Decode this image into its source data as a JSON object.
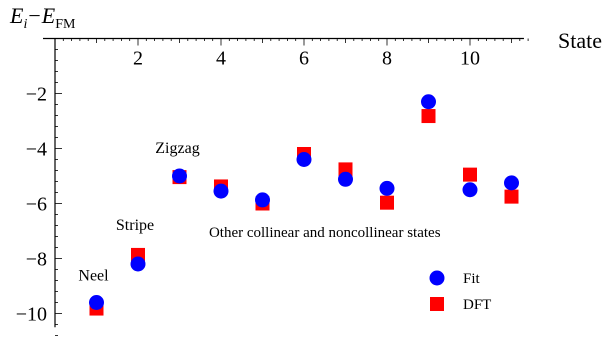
{
  "chart_data": {
    "type": "scatter",
    "ylabel": {
      "main": "E",
      "sub1": "i",
      "minus": "−",
      "main2": "E",
      "sub2": "FM"
    },
    "xlabel": "State",
    "xlim": [
      0,
      11.3
    ],
    "ylim": [
      -10.5,
      0.3
    ],
    "xticks": {
      "major": [
        2,
        4,
        6,
        8,
        10
      ],
      "labels": [
        "2",
        "4",
        "6",
        "8",
        "10"
      ]
    },
    "yticks": {
      "major": [
        -2,
        -4,
        -6,
        -8,
        -10
      ],
      "labels": [
        "−2",
        "−4",
        "−6",
        "−8",
        "−10"
      ]
    },
    "series": [
      {
        "name": "Fit",
        "marker": "circle",
        "color": "#0000ff",
        "x": [
          1,
          2,
          3,
          4,
          5,
          6,
          7,
          8,
          9,
          10,
          11
        ],
        "y": [
          -9.6,
          -8.2,
          -5.0,
          -5.55,
          -5.87,
          -4.4,
          -5.12,
          -5.45,
          -2.3,
          -5.5,
          -5.25
        ]
      },
      {
        "name": "DFT",
        "marker": "square",
        "color": "#ff0000",
        "x": [
          1,
          2,
          3,
          4,
          5,
          6,
          7,
          8,
          9,
          10,
          11
        ],
        "y": [
          -9.82,
          -7.87,
          -5.04,
          -5.38,
          -6.0,
          -4.2,
          -4.76,
          -5.97,
          -2.82,
          -4.95,
          -5.75
        ]
      }
    ],
    "annotations": [
      {
        "text": "Neel",
        "x": 1,
        "y": -9.6
      },
      {
        "text": "Stripe",
        "x": 2,
        "y": -8.2
      },
      {
        "text": "Zigzag",
        "x": 3,
        "y": -5.0
      },
      {
        "text": "Other collinear and noncollinear states",
        "x": 6.5,
        "y": -7.0
      }
    ],
    "legend": {
      "position": "bottom-right"
    }
  }
}
